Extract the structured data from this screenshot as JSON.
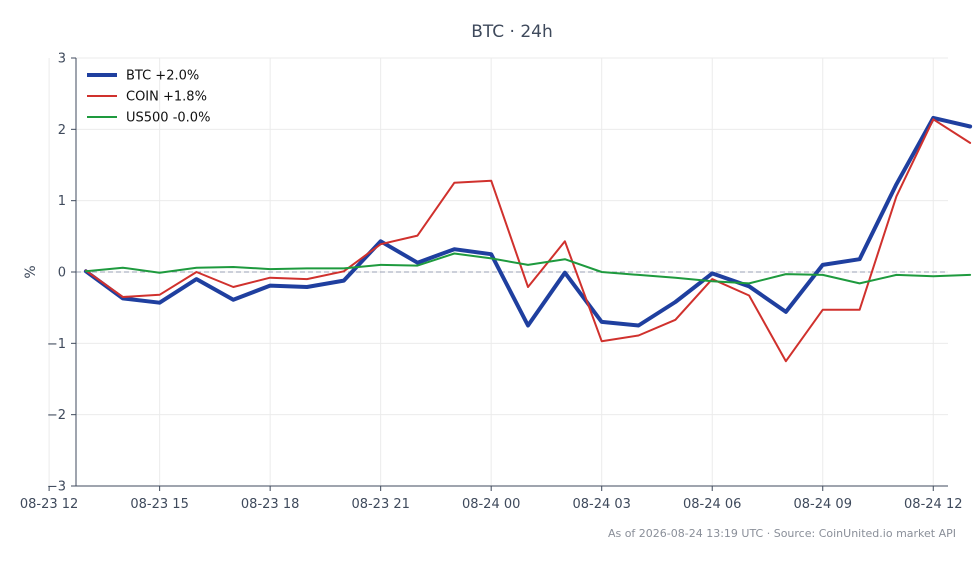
{
  "chart_data": {
    "type": "line",
    "title": "BTC · 24h",
    "xlabel": "",
    "ylabel": "%",
    "ylim": [
      -3,
      3
    ],
    "xlim": [
      12.73,
      36.4
    ],
    "yticks": [
      -3,
      -2,
      -1,
      0,
      1,
      2,
      3
    ],
    "ytick_labels": [
      "−3",
      "−2",
      "−1",
      "0",
      "1",
      "2",
      "3"
    ],
    "xticks": [
      12,
      15,
      18,
      21,
      24,
      27,
      30,
      33,
      36
    ],
    "xtick_labels": [
      "08-23 12",
      "08-23 15",
      "08-23 18",
      "08-23 21",
      "08-24 00",
      "08-24 03",
      "08-24 06",
      "08-24 09",
      "08-24 12"
    ],
    "grid": true,
    "zero_line": true,
    "legend_position": "top-left",
    "x": [
      13,
      14,
      15,
      16,
      17,
      18,
      19,
      20,
      21,
      22,
      23,
      24,
      25,
      26,
      27,
      28,
      29,
      30,
      31,
      32,
      33,
      34,
      35,
      36,
      37
    ],
    "series": [
      {
        "name": "BTC +2.0%",
        "color": "#1f3f9f",
        "width": 4,
        "values": [
          0.01,
          -0.37,
          -0.43,
          -0.1,
          -0.39,
          -0.19,
          -0.21,
          -0.12,
          0.43,
          0.13,
          0.32,
          0.25,
          -0.75,
          -0.01,
          -0.7,
          -0.75,
          -0.42,
          -0.02,
          -0.2,
          -0.56,
          0.1,
          0.18,
          1.23,
          2.16,
          2.04
        ]
      },
      {
        "name": "COIN +1.8%",
        "color": "#d0312d",
        "width": 2,
        "values": [
          0.02,
          -0.35,
          -0.32,
          0.0,
          -0.21,
          -0.08,
          -0.1,
          0.01,
          0.39,
          0.51,
          1.25,
          1.28,
          -0.21,
          0.43,
          -0.97,
          -0.89,
          -0.67,
          -0.1,
          -0.33,
          -1.25,
          -0.53,
          -0.53,
          1.06,
          2.14,
          1.81
        ]
      },
      {
        "name": "US500 -0.0%",
        "color": "#1e9a3e",
        "width": 2,
        "values": [
          0.01,
          0.06,
          -0.01,
          0.06,
          0.07,
          0.04,
          0.05,
          0.05,
          0.1,
          0.09,
          0.26,
          0.19,
          0.1,
          0.18,
          0.0,
          -0.04,
          -0.08,
          -0.13,
          -0.16,
          -0.03,
          -0.04,
          -0.16,
          -0.04,
          -0.06,
          -0.04
        ]
      }
    ]
  },
  "footer": {
    "text": "As of 2026-08-24 13:19 UTC · Source: CoinUnited.io market API"
  }
}
